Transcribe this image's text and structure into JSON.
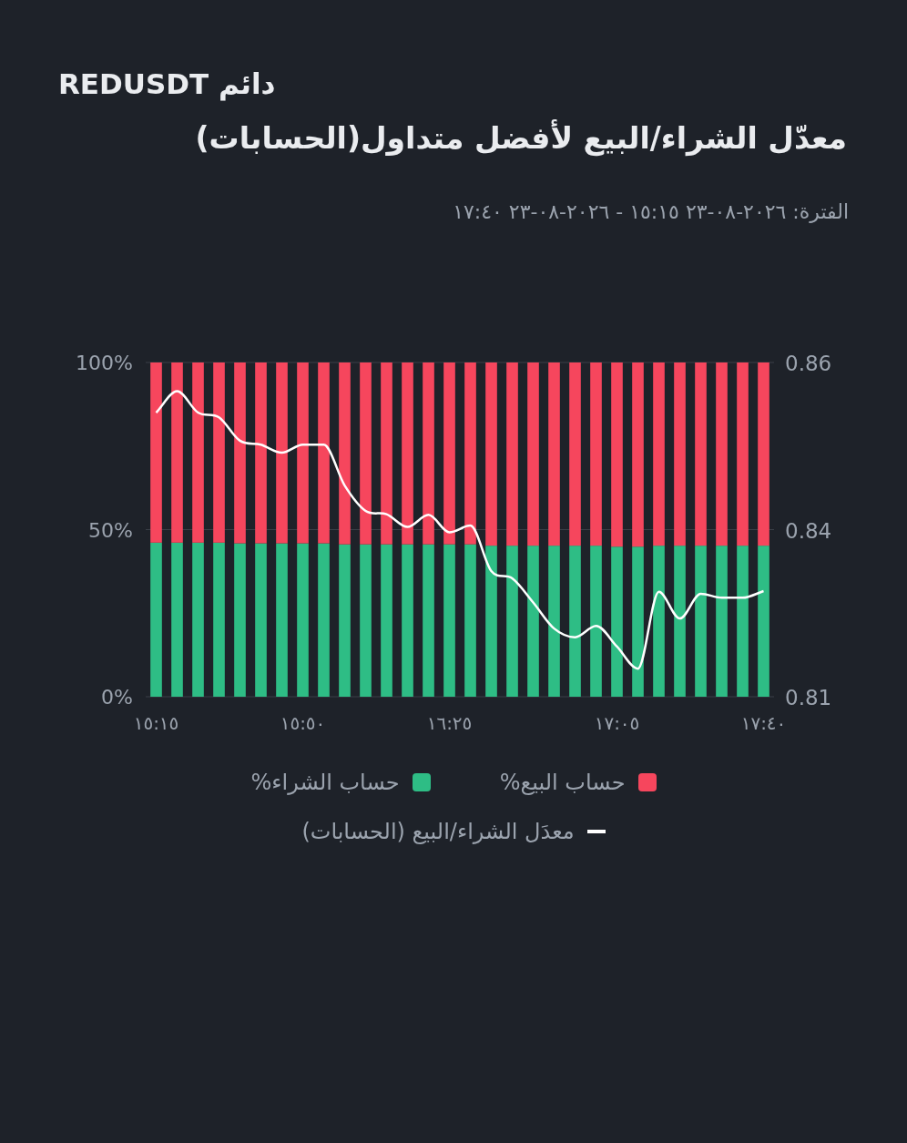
{
  "chart_data": {
    "type": "bar",
    "title": "دائم REDUSDT",
    "subtitle": "معدّل الشراء/البيع لأفضل متداول(الحسابات)",
    "annotations": [
      "الفترة: ٢٠٢٦-٠٨-٢٣ ١٥:١٥ - ٢٠٢٦-٠٨-٢٣ ١٧:٤٠"
    ],
    "categories": [
      "١٥:١٥",
      null,
      null,
      null,
      null,
      null,
      null,
      "١٥:٥٠",
      null,
      null,
      null,
      null,
      null,
      null,
      "١٦:٢٥",
      null,
      null,
      null,
      null,
      null,
      null,
      null,
      "١٧:٠٥",
      null,
      null,
      null,
      null,
      null,
      null,
      "١٧:٤٠"
    ],
    "stacked": true,
    "series": [
      {
        "name": "حساب الشراء%",
        "color": "#2ebd85",
        "values": [
          46.1,
          46.1,
          46.1,
          46.1,
          45.9,
          45.9,
          45.9,
          45.9,
          45.9,
          45.6,
          45.6,
          45.6,
          45.6,
          45.6,
          45.6,
          45.6,
          45.2,
          45.2,
          45.2,
          45.2,
          45.2,
          45.2,
          44.9,
          44.9,
          45.2,
          45.2,
          45.2,
          45.2,
          45.2,
          45.2
        ]
      },
      {
        "name": "حساب البيع%",
        "color": "#f6465d",
        "values": [
          53.9,
          53.9,
          53.9,
          53.9,
          54.1,
          54.1,
          54.1,
          54.1,
          54.1,
          54.4,
          54.4,
          54.4,
          54.4,
          54.4,
          54.4,
          54.4,
          54.8,
          54.8,
          54.8,
          54.8,
          54.8,
          54.8,
          55.1,
          55.1,
          54.8,
          54.8,
          54.8,
          54.8,
          54.8,
          54.8
        ]
      },
      {
        "name": "معدَل الشراء/البيع (الحسابات)",
        "type": "line",
        "axis": "y2",
        "color": "#ffffff",
        "values": [
          0.8525,
          0.8557,
          0.8525,
          0.8518,
          0.8483,
          0.8477,
          0.8465,
          0.8477,
          0.8477,
          0.8416,
          0.8378,
          0.8373,
          0.8354,
          0.8372,
          0.8346,
          0.8356,
          0.8288,
          0.8277,
          0.8241,
          0.8202,
          0.8189,
          0.8206,
          0.8175,
          0.8142,
          0.8257,
          0.8217,
          0.8254,
          0.8248,
          0.8248,
          0.8258
        ]
      }
    ],
    "ylim": [
      0,
      100
    ],
    "yticks": [
      {
        "value": 0,
        "label": "0%"
      },
      {
        "value": 50,
        "label": "50%"
      },
      {
        "value": 100,
        "label": "100%"
      }
    ],
    "y2lim": [
      0.81,
      0.86
    ],
    "y2ticks": [
      0.81,
      {
        "value": 0.835,
        "label": "0.84"
      },
      0.86
    ],
    "grid": "y",
    "legend": "bottom"
  }
}
